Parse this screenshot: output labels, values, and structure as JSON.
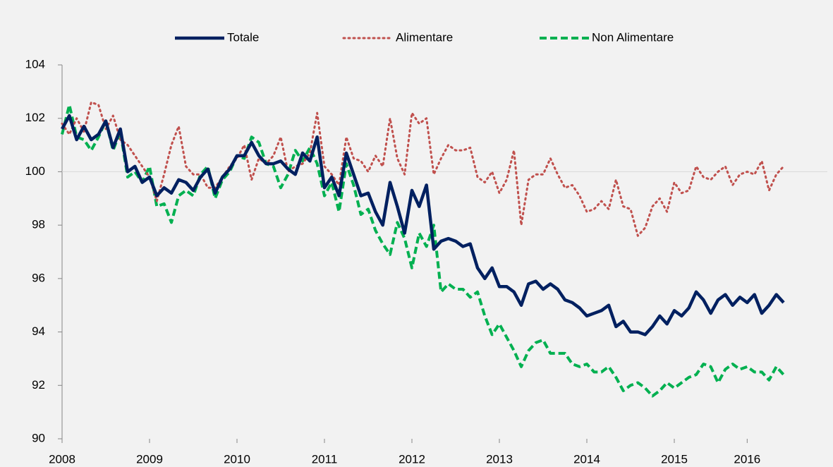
{
  "chart_data": {
    "type": "line",
    "x": [
      0,
      1,
      2,
      3,
      4,
      5,
      6,
      7,
      8,
      9,
      10,
      11,
      12,
      13,
      14,
      15,
      16,
      17,
      18,
      19,
      20,
      21,
      22,
      23,
      24,
      25,
      26,
      27,
      28,
      29,
      30,
      31,
      32,
      33,
      34,
      35,
      36,
      37,
      38,
      39,
      40,
      41,
      42,
      43,
      44,
      45,
      46,
      47,
      48,
      49,
      50,
      51,
      52,
      53,
      54,
      55,
      56,
      57,
      58,
      59,
      60,
      61,
      62,
      63,
      64,
      65,
      66,
      67,
      68,
      69,
      70,
      71,
      72,
      73,
      74,
      75,
      76,
      77,
      78,
      79,
      80,
      81,
      82,
      83,
      84,
      85,
      86,
      87,
      88,
      89,
      90,
      91,
      92,
      93,
      94,
      95,
      96,
      97,
      98,
      99
    ],
    "series": [
      {
        "name": "Totale",
        "color": "#002060",
        "dash": "solid",
        "values": [
          101.6,
          102.1,
          101.2,
          101.7,
          101.2,
          101.4,
          101.9,
          100.9,
          101.6,
          100.0,
          100.2,
          99.6,
          99.8,
          99.1,
          99.4,
          99.2,
          99.7,
          99.6,
          99.3,
          99.8,
          100.1,
          99.2,
          99.8,
          100.1,
          100.6,
          100.6,
          101.1,
          100.6,
          100.3,
          100.3,
          100.4,
          100.1,
          99.9,
          100.7,
          100.4,
          101.3,
          99.4,
          99.8,
          99.1,
          100.7,
          99.9,
          99.1,
          99.2,
          98.5,
          98.0,
          99.6,
          98.7,
          97.7,
          99.3,
          98.7,
          99.5,
          97.1,
          97.4,
          97.5,
          97.4,
          97.2,
          97.3,
          96.4,
          96.0,
          96.4,
          95.7,
          95.7,
          95.5,
          95.0,
          95.8,
          95.9,
          95.6,
          95.8,
          95.6,
          95.2,
          95.1,
          94.9,
          94.6,
          94.7,
          94.8,
          95.0,
          94.2,
          94.4,
          94.0,
          94.0,
          93.9,
          94.2,
          94.6,
          94.3,
          94.8,
          94.6,
          94.9,
          95.5,
          95.2,
          94.7,
          95.2,
          95.4,
          95.0,
          95.3,
          95.1,
          95.4,
          94.7,
          95.0,
          95.4,
          95.1
        ]
      },
      {
        "name": "Alimentare",
        "color": "#c0504d",
        "dash": "dotted",
        "values": [
          101.8,
          101.4,
          102.0,
          101.5,
          102.6,
          102.5,
          101.6,
          102.1,
          101.2,
          101.0,
          100.6,
          100.2,
          99.8,
          98.9,
          99.9,
          101.0,
          101.7,
          100.2,
          99.9,
          99.9,
          99.4,
          99.4,
          99.8,
          100.2,
          100.5,
          101.0,
          99.7,
          100.5,
          100.3,
          100.6,
          101.3,
          100.0,
          100.2,
          100.3,
          100.7,
          102.2,
          100.2,
          99.9,
          99.5,
          101.3,
          100.5,
          100.4,
          100.0,
          100.6,
          100.2,
          102.0,
          100.5,
          99.9,
          102.2,
          101.8,
          102.0,
          99.9,
          100.5,
          101.0,
          100.8,
          100.8,
          100.9,
          99.8,
          99.6,
          100.0,
          99.2,
          99.7,
          100.8,
          98.0,
          99.7,
          99.9,
          99.9,
          100.5,
          99.9,
          99.4,
          99.5,
          99.1,
          98.5,
          98.6,
          98.9,
          98.6,
          99.7,
          98.7,
          98.6,
          97.6,
          97.9,
          98.7,
          99.0,
          98.5,
          99.6,
          99.2,
          99.3,
          100.2,
          99.8,
          99.7,
          100.0,
          100.2,
          99.5,
          99.9,
          100.0,
          99.9,
          100.4,
          99.3,
          99.9,
          100.2
        ]
      },
      {
        "name": "Non Alimentare",
        "color": "#00b050",
        "dash": "dashed",
        "values": [
          101.4,
          102.5,
          101.3,
          101.2,
          100.8,
          101.3,
          101.9,
          100.8,
          101.5,
          99.8,
          100.0,
          99.6,
          100.2,
          98.7,
          98.8,
          98.1,
          99.1,
          99.3,
          99.1,
          99.9,
          100.2,
          99.0,
          99.7,
          100.0,
          100.6,
          100.5,
          101.3,
          101.1,
          100.3,
          100.2,
          99.4,
          99.9,
          100.8,
          100.4,
          100.9,
          100.3,
          99.1,
          99.6,
          98.5,
          100.3,
          99.5,
          98.4,
          98.6,
          97.8,
          97.3,
          96.9,
          98.1,
          97.5,
          96.4,
          97.7,
          97.2,
          98.0,
          95.5,
          95.8,
          95.6,
          95.6,
          95.3,
          95.5,
          94.6,
          93.9,
          94.3,
          93.8,
          93.3,
          92.7,
          93.3,
          93.6,
          93.7,
          93.2,
          93.2,
          93.2,
          92.8,
          92.7,
          92.8,
          92.5,
          92.5,
          92.7,
          92.3,
          91.8,
          92.0,
          92.1,
          91.9,
          91.6,
          91.8,
          92.1,
          91.9,
          92.1,
          92.3,
          92.4,
          92.8,
          92.7,
          92.1,
          92.6,
          92.8,
          92.6,
          92.7,
          92.5,
          92.5,
          92.2,
          92.7,
          92.4
        ]
      }
    ],
    "xlim": [
      0,
      105
    ],
    "xticks": [
      {
        "value": 0,
        "label": "2008"
      },
      {
        "value": 12,
        "label": "2009"
      },
      {
        "value": 24,
        "label": "2010"
      },
      {
        "value": 36,
        "label": "2011"
      },
      {
        "value": 48,
        "label": "2012"
      },
      {
        "value": 60,
        "label": "2013"
      },
      {
        "value": 72,
        "label": "2014"
      },
      {
        "value": 84,
        "label": "2015"
      },
      {
        "value": 94,
        "label": "2016"
      }
    ],
    "ylim": [
      90,
      104
    ],
    "yticks": [
      90,
      92,
      94,
      96,
      98,
      100,
      102,
      104
    ],
    "x_axis_crosses_at": 100,
    "legend": "top"
  }
}
